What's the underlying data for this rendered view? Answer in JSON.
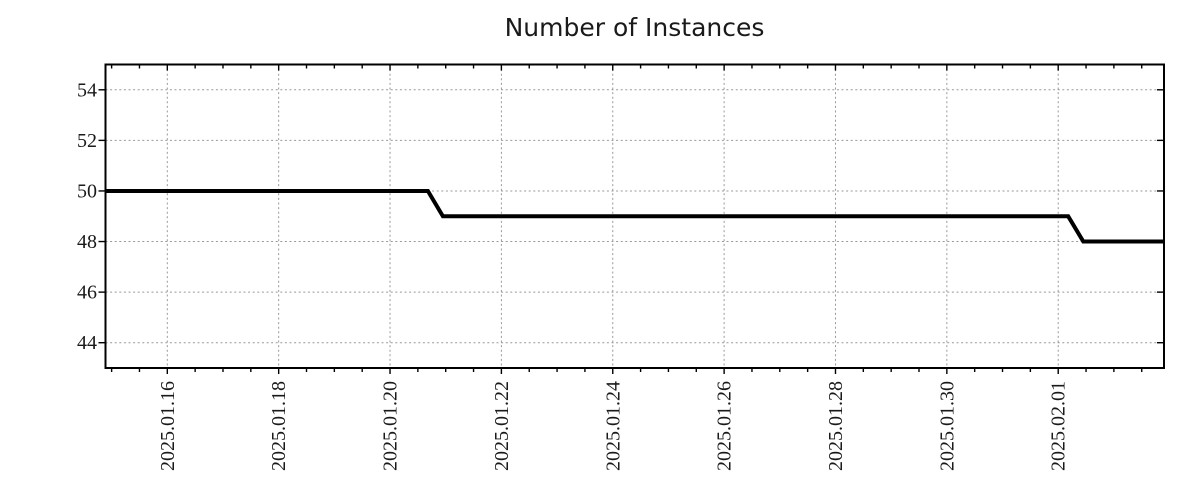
{
  "title": "Number of Instances",
  "chart_data": {
    "type": "line",
    "title": "Number of Instances",
    "xlabel": "",
    "ylabel": "",
    "grid": "dotted",
    "legend": "none",
    "x_axis": {
      "unit": "date",
      "note_t_definition": "t = days relative to 2025-01-16 00:00",
      "range_t": [
        -1.11,
        17.9
      ],
      "major_ticks_t": [
        0,
        2,
        4,
        6,
        8,
        10,
        12,
        14,
        16
      ],
      "tick_labels": [
        "2025.01.16",
        "2025.01.18",
        "2025.01.20",
        "2025.01.22",
        "2025.01.24",
        "2025.01.26",
        "2025.01.28",
        "2025.01.30",
        "2025.02.01"
      ],
      "minor_tick_step_days": 0.5,
      "minor_first_t": -1.0,
      "minor_last_t": 17.5
    },
    "y_axis": {
      "range": [
        43,
        55
      ],
      "ticks": [
        44,
        46,
        48,
        50,
        52,
        54
      ]
    },
    "series": [
      {
        "name": "instances",
        "color": "#000000",
        "stroke_width": 4,
        "points_t_v": [
          [
            -1.11,
            50
          ],
          [
            4.68,
            50
          ],
          [
            4.95,
            49
          ],
          [
            16.18,
            49
          ],
          [
            16.45,
            48
          ],
          [
            17.9,
            48
          ]
        ],
        "points_date_value": [
          [
            "2025-01-15 (left edge)",
            50
          ],
          [
            "2025-01-20 ~16:00",
            50
          ],
          [
            "2025-01-20 ~23:00",
            49
          ],
          [
            "2025-02-01 ~04:00",
            49
          ],
          [
            "2025-02-01 ~11:00",
            48
          ],
          [
            "2025-02-02 (right edge)",
            48
          ]
        ]
      }
    ],
    "styles": {
      "grid_color": "#999999",
      "axis_color": "#000000",
      "text_color": "#1a1a1a",
      "background": "#ffffff"
    }
  }
}
